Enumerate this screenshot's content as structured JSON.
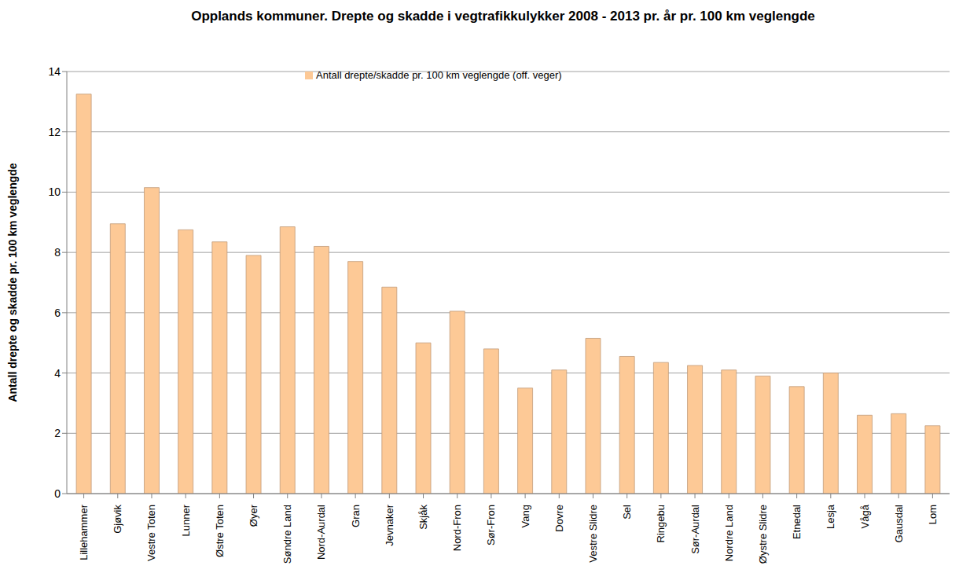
{
  "chart_data": {
    "type": "bar",
    "title": "Opplands kommuner. Drepte og skadde i vegtrafikkulykker 2008 - 2013 pr. år pr. 100 km veglengde",
    "y_label": "Antall drepte og skadde pr. 100 km veglengde",
    "categories": [
      "Lillehammer",
      "Gjøvik",
      "Vestre Toten",
      "Lunner",
      "Østre Toten",
      "Øyer",
      "Søndre Land",
      "Nord-Aurdal",
      "Gran",
      "Jevnaker",
      "Skjåk",
      "Nord-Fron",
      "Sør-Fron",
      "Vang",
      "Dovre",
      "Vestre Slidre",
      "Sel",
      "Ringebu",
      "Sør-Aurdal",
      "Nordre Land",
      "Øystre Slidre",
      "Etnedal",
      "Lesja",
      "Vågå",
      "Gausdal",
      "Lom"
    ],
    "series": [
      {
        "name": "Antall drepte/skadde pr. 100 km veglengde (off. veger)",
        "color": "#fdc996",
        "values": [
          13.25,
          8.95,
          10.15,
          8.75,
          8.35,
          7.9,
          8.85,
          8.2,
          7.7,
          6.85,
          5.0,
          6.05,
          4.8,
          3.5,
          4.1,
          5.15,
          4.55,
          4.35,
          4.25,
          4.1,
          3.9,
          3.55,
          4.0,
          2.6,
          2.65,
          2.25
        ]
      }
    ],
    "ylim": [
      0,
      14
    ],
    "yticks": [
      0,
      2,
      4,
      6,
      8,
      10,
      12,
      14
    ],
    "grid": true,
    "legend": "top"
  }
}
